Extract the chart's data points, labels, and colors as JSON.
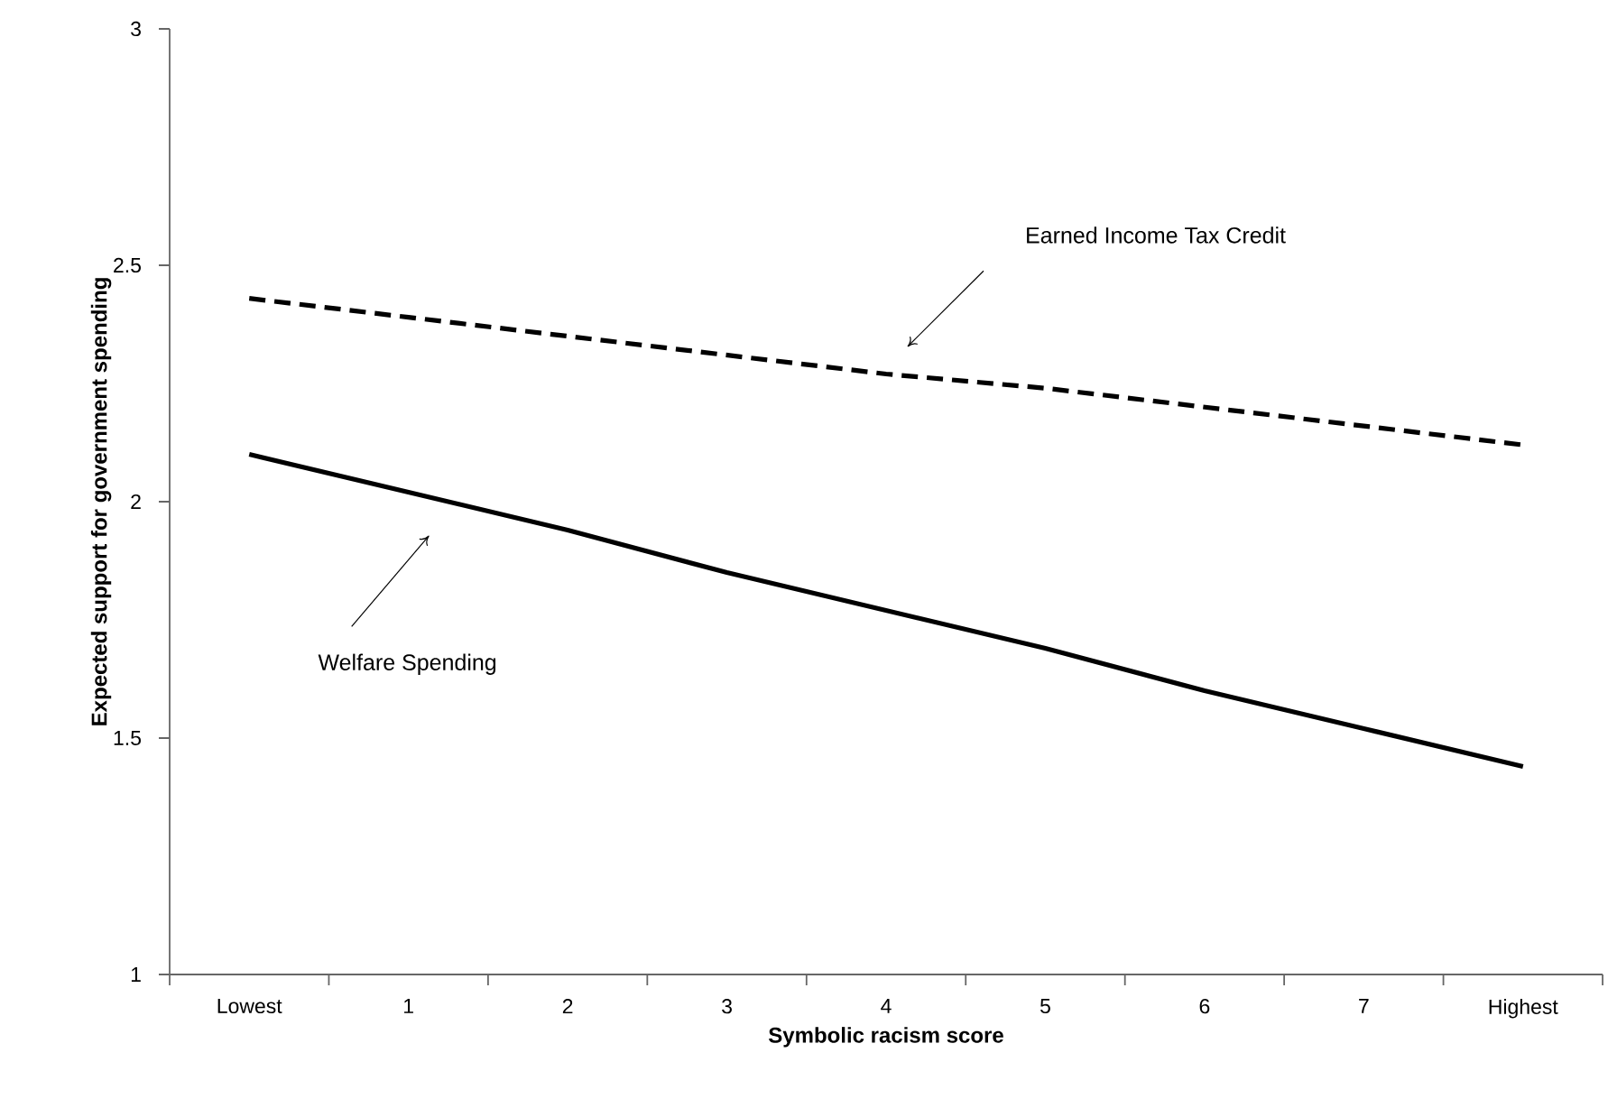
{
  "chart_data": {
    "type": "line",
    "xlabel": "Symbolic racism score",
    "ylabel": "Expected support for government spending",
    "categories": [
      "Lowest",
      "1",
      "2",
      "3",
      "4",
      "5",
      "6",
      "7",
      "Highest"
    ],
    "ylim": [
      1,
      3
    ],
    "yticks": [
      1,
      1.5,
      2,
      2.5,
      3
    ],
    "grid": false,
    "marker": "none",
    "series": [
      {
        "color": "#000000",
        "line_style": "dashed",
        "values": [
          2.43,
          2.39,
          2.35,
          2.31,
          2.27,
          2.24,
          2.2,
          2.16,
          2.12
        ]
      },
      {
        "color": "#000000",
        "line_style": "solid",
        "values": [
          2.1,
          2.02,
          1.94,
          1.85,
          1.77,
          1.69,
          1.6,
          1.52,
          1.44
        ]
      }
    ],
    "annotations": [
      "Earned Income Tax Credit",
      "Welfare Spending"
    ]
  }
}
